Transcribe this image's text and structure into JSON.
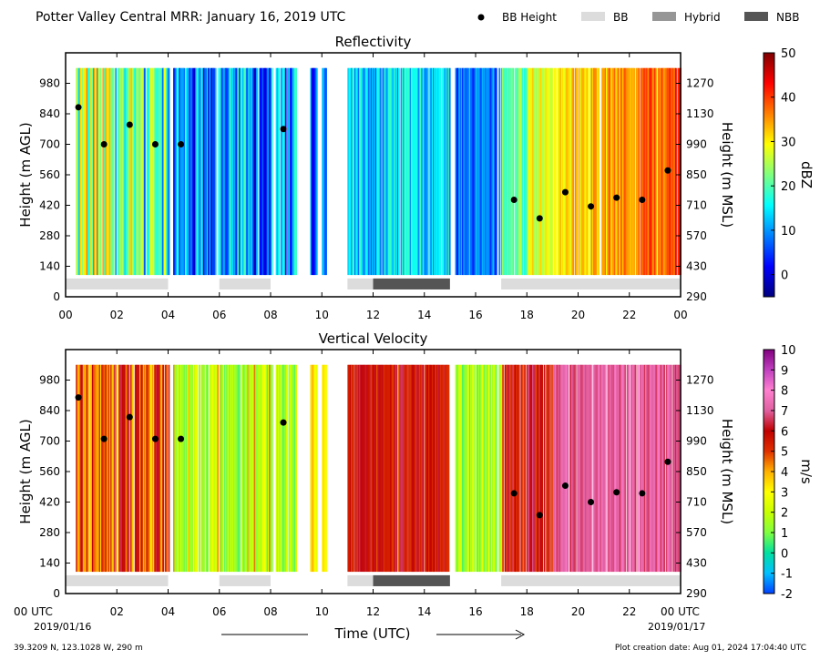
{
  "header": {
    "title": "Potter Valley Central MRR:  January 16, 2019 UTC",
    "legend": [
      {
        "label": "BB Height",
        "kind": "dot",
        "color": "#000000"
      },
      {
        "label": "BB",
        "kind": "box",
        "color": "#dcdcdc"
      },
      {
        "label": "Hybrid",
        "kind": "box",
        "color": "#969696"
      },
      {
        "label": "NBB",
        "kind": "box",
        "color": "#555555"
      }
    ]
  },
  "footer": {
    "location": "39.3209 N, 123.1028 W, 290 m",
    "creation": "Plot creation date: Aug 01, 2024 17:04:40 UTC",
    "xlabel": "Time (UTC)",
    "start_label": "00 UTC",
    "start_date": "2019/01/16",
    "end_label": "00 UTC",
    "end_date": "2019/01/17"
  },
  "chart_data": [
    {
      "type": "heatmap",
      "title": "Reflectivity",
      "ylabel": "Height (m AGL)",
      "y2label": "Height (m MSL)",
      "cbar_label": "dBZ",
      "x_ticks": [
        "00",
        "02",
        "04",
        "06",
        "08",
        "10",
        "12",
        "14",
        "16",
        "18",
        "20",
        "22",
        "00"
      ],
      "y_ticks": [
        0,
        140,
        280,
        420,
        560,
        700,
        840,
        980
      ],
      "y2_ticks": [
        290,
        430,
        570,
        710,
        850,
        990,
        1130,
        1270
      ],
      "ylim": [
        0,
        1120
      ],
      "xlim": [
        0,
        24
      ],
      "cbar_ticks": [
        0,
        10,
        20,
        30,
        40,
        50
      ],
      "cbar_range": [
        -5,
        50
      ],
      "cbar_colors": [
        "#00007f",
        "#0000ff",
        "#007fff",
        "#00ffff",
        "#7fff7f",
        "#ffff00",
        "#ff7f00",
        "#ff0000",
        "#7f0000"
      ],
      "bb_height": [
        [
          0.5,
          870
        ],
        [
          1.5,
          700
        ],
        [
          2.5,
          790
        ],
        [
          3.5,
          700
        ],
        [
          4.5,
          700
        ],
        [
          8.5,
          770
        ],
        [
          17.5,
          445
        ],
        [
          18.5,
          360
        ],
        [
          19.5,
          480
        ],
        [
          20.5,
          415
        ],
        [
          21.5,
          455
        ],
        [
          22.5,
          445
        ],
        [
          23.5,
          580
        ]
      ],
      "bb_type": [
        {
          "type": "BB",
          "start": 0,
          "end": 4
        },
        {
          "type": "BB",
          "start": 6,
          "end": 8
        },
        {
          "type": "BB",
          "start": 11,
          "end": 12
        },
        {
          "type": "NBB",
          "start": 12,
          "end": 15
        },
        {
          "type": "BB",
          "start": 17,
          "end": 24
        }
      ]
    },
    {
      "type": "heatmap",
      "title": "Vertical Velocity",
      "ylabel": "Height (m AGL)",
      "y2label": "Height (m MSL)",
      "cbar_label": "m/s",
      "x_ticks": [
        "00",
        "02",
        "04",
        "06",
        "08",
        "10",
        "12",
        "14",
        "16",
        "18",
        "20",
        "22",
        "00"
      ],
      "y_ticks": [
        0,
        140,
        280,
        420,
        560,
        700,
        840,
        980
      ],
      "y2_ticks": [
        290,
        430,
        570,
        710,
        850,
        990,
        1130,
        1270
      ],
      "ylim": [
        0,
        1120
      ],
      "xlim": [
        0,
        24
      ],
      "cbar_ticks": [
        -2,
        -1,
        0,
        1,
        2,
        3,
        4,
        5,
        6,
        7,
        8,
        9,
        10
      ],
      "cbar_range": [
        -2,
        10
      ],
      "cbar_colors": [
        "#0040ff",
        "#00c0ff",
        "#00e0a0",
        "#7fff40",
        "#c8ff00",
        "#ffff00",
        "#ffb000",
        "#e03000",
        "#c00000",
        "#e060a0",
        "#ff80d0",
        "#c040c0",
        "#800080"
      ],
      "bb_height": [
        [
          0.5,
          900
        ],
        [
          1.5,
          710
        ],
        [
          2.5,
          810
        ],
        [
          3.5,
          710
        ],
        [
          4.5,
          710
        ],
        [
          8.5,
          785
        ],
        [
          17.5,
          460
        ],
        [
          18.5,
          360
        ],
        [
          19.5,
          495
        ],
        [
          20.5,
          420
        ],
        [
          21.5,
          465
        ],
        [
          22.5,
          460
        ],
        [
          23.5,
          605
        ]
      ],
      "bb_type": [
        {
          "type": "BB",
          "start": 0,
          "end": 4
        },
        {
          "type": "BB",
          "start": 6,
          "end": 8
        },
        {
          "type": "BB",
          "start": 11,
          "end": 12
        },
        {
          "type": "NBB",
          "start": 12,
          "end": 15
        },
        {
          "type": "BB",
          "start": 17,
          "end": 24
        }
      ]
    }
  ]
}
